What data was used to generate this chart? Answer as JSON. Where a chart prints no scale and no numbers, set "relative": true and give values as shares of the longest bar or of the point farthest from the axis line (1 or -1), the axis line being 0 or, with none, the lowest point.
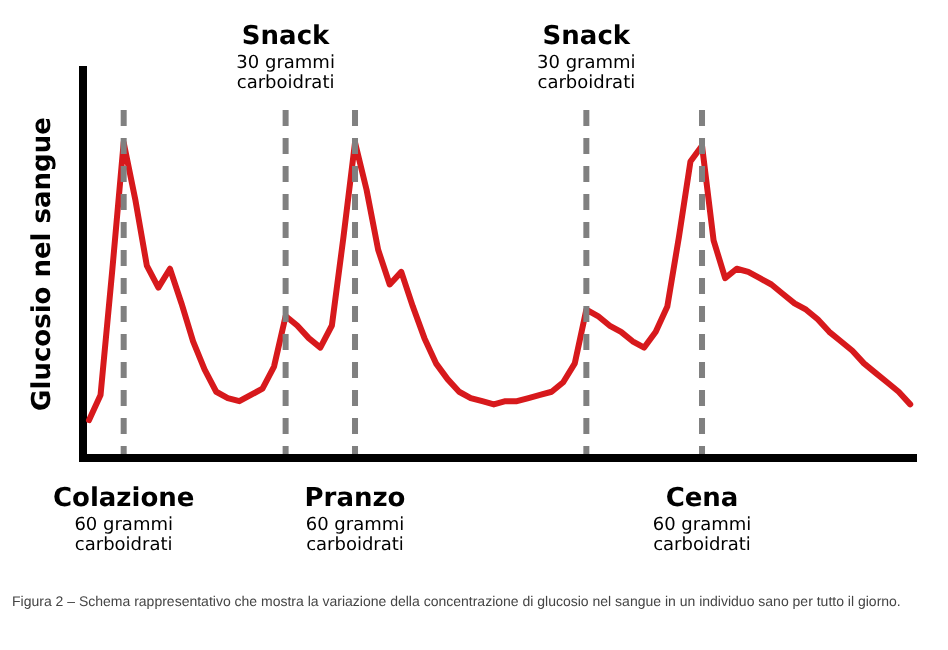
{
  "chart_data": {
    "type": "line",
    "relative": true,
    "ylabel": "Glucosio nel sangue",
    "grid": "x",
    "legend": false,
    "marker": "none",
    "categories": [
      null,
      null,
      null,
      "Colazione\n60 grammi\ncarboidrati",
      null,
      null,
      null,
      null,
      null,
      null,
      null,
      null,
      null,
      null,
      null,
      null,
      null,
      "Snack\n30 grammi\ncarboidrati",
      null,
      null,
      null,
      null,
      null,
      "Pranzo\n60 grammi\ncarboidrati",
      null,
      null,
      null,
      null,
      null,
      null,
      null,
      null,
      null,
      null,
      null,
      null,
      null,
      null,
      null,
      null,
      null,
      null,
      null,
      "Snack\n30 grammi\ncarboidrati",
      null,
      null,
      null,
      null,
      null,
      null,
      null,
      null,
      null,
      "Cena\n60 grammi\ncarboidrati",
      null,
      null,
      null,
      null,
      null,
      null,
      null,
      null,
      null,
      null,
      null,
      null,
      null,
      null,
      null,
      null,
      null,
      null
    ],
    "series": [
      {
        "color": "#d7191c",
        "values": [
          0.12,
          0.2,
          0.59,
          1.0,
          0.82,
          0.61,
          0.54,
          0.6,
          0.49,
          0.37,
          0.28,
          0.21,
          0.19,
          0.18,
          0.2,
          0.22,
          0.29,
          0.45,
          0.42,
          0.38,
          0.35,
          0.42,
          0.7,
          1.0,
          0.85,
          0.66,
          0.55,
          0.59,
          0.48,
          0.38,
          0.3,
          0.25,
          0.21,
          0.19,
          0.18,
          0.17,
          0.18,
          0.18,
          0.19,
          0.2,
          0.21,
          0.24,
          0.3,
          0.47,
          0.45,
          0.42,
          0.4,
          0.37,
          0.35,
          0.4,
          0.48,
          0.7,
          0.94,
          0.99,
          0.69,
          0.57,
          0.6,
          0.59,
          0.57,
          0.55,
          0.52,
          0.49,
          0.47,
          0.44,
          0.4,
          0.37,
          0.34,
          0.3,
          0.27,
          0.24,
          0.21,
          0.17
        ]
      }
    ],
    "annotations": [
      "Figura 2 – Schema rappresentativo che mostra la variazione della concentrazione di glucosio nel sangue in un individuo sano per tutto il giorno."
    ]
  }
}
